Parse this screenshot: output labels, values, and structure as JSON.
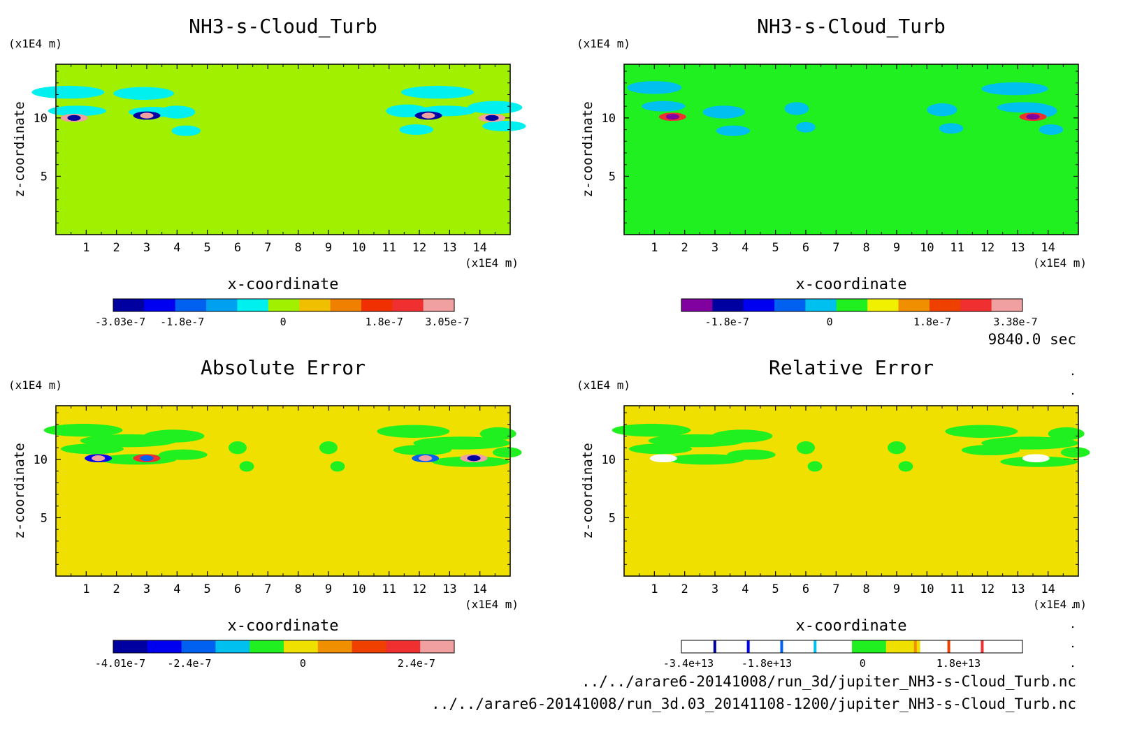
{
  "time_label": "9840.0 sec",
  "files": [
    "../../arare6-20141008/run_3d/jupiter_NH3-s-Cloud_Turb.nc",
    "../../arare6-20141008/run_3d.03_20141108-1200/jupiter_NH3-s-Cloud_Turb.nc"
  ],
  "chart_data": [
    {
      "type": "heatmap",
      "title": "NH3-s-Cloud_Turb",
      "xlabel": "x-coordinate",
      "ylabel": "z-coordinate",
      "x_unit": "(x1E4 m)",
      "y_unit": "(x1E4 m)",
      "xlim": [
        0,
        15
      ],
      "ylim": [
        0,
        14.6
      ],
      "xticks": [
        "1",
        "2",
        "3",
        "4",
        "5",
        "6",
        "7",
        "8",
        "9",
        "10",
        "11",
        "12",
        "13",
        "14"
      ],
      "yticks": [
        "5",
        "10"
      ],
      "background_color": "#a0f000",
      "colorbar": {
        "colors": [
          "#0000a0",
          "#0000f0",
          "#0060f0",
          "#00a0f0",
          "#00f0f0",
          "#a0f000",
          "#f0c000",
          "#f08000",
          "#f03000",
          "#f03030",
          "#f0a0a0"
        ],
        "labels": [
          "-3.03e-7",
          "-1.8e-7",
          "0",
          "1.8e-7",
          "3.05e-7"
        ],
        "min": -3.03e-07,
        "max": 3.05e-07
      },
      "features": [
        {
          "x": 0.6,
          "z": 10.0,
          "value": -3e-07
        },
        {
          "x": 3.0,
          "z": 10.2,
          "value": 3.05e-07
        },
        {
          "x": 12.3,
          "z": 10.2,
          "value": 2.8e-07
        },
        {
          "x": 14.4,
          "z": 10.0,
          "value": -3e-07
        }
      ]
    },
    {
      "type": "heatmap",
      "title": "NH3-s-Cloud_Turb",
      "xlabel": "x-coordinate",
      "ylabel": "z-coordinate",
      "x_unit": "(x1E4 m)",
      "y_unit": "(x1E4 m)",
      "xlim": [
        0,
        15
      ],
      "ylim": [
        0,
        14.6
      ],
      "xticks": [
        "1",
        "2",
        "3",
        "4",
        "5",
        "6",
        "7",
        "8",
        "9",
        "10",
        "11",
        "12",
        "13",
        "14"
      ],
      "yticks": [
        "5",
        "10"
      ],
      "background_color": "#20f020",
      "colorbar": {
        "colors": [
          "#8000a0",
          "#0000a0",
          "#0000f0",
          "#0060f0",
          "#00c0f0",
          "#20f020",
          "#f0f000",
          "#f09000",
          "#f04000",
          "#f03030",
          "#f0a0a0"
        ],
        "labels": [
          "-1.8e-7",
          "0",
          "1.8e-7",
          "3.38e-7"
        ],
        "min": -2.6e-07,
        "max": 3.38e-07
      },
      "features": [
        {
          "x": 1.6,
          "z": 10.1,
          "value": -2.6e-07
        },
        {
          "x": 13.5,
          "z": 10.1,
          "value": -2.4e-07
        }
      ]
    },
    {
      "type": "heatmap",
      "title": "Absolute Error",
      "xlabel": "x-coordinate",
      "ylabel": "z-coordinate",
      "x_unit": "(x1E4 m)",
      "y_unit": "(x1E4 m)",
      "xlim": [
        0,
        15
      ],
      "ylim": [
        0,
        14.6
      ],
      "xticks": [
        "1",
        "2",
        "3",
        "4",
        "5",
        "6",
        "7",
        "8",
        "9",
        "10",
        "11",
        "12",
        "13",
        "14"
      ],
      "yticks": [
        "5",
        "10"
      ],
      "background_color": "#f0e000",
      "colorbar": {
        "colors": [
          "#0000a0",
          "#0000f0",
          "#0060f0",
          "#00c0f0",
          "#20f020",
          "#f0e000",
          "#f09000",
          "#f04000",
          "#f03030",
          "#f0a0a0"
        ],
        "labels": [
          "-4.01e-7",
          "-2.4e-7",
          "0",
          "2.4e-7"
        ],
        "min": -4.01e-07,
        "max": 3.2e-07
      },
      "features": [
        {
          "x": 1.4,
          "z": 10.1,
          "value": 3e-07
        },
        {
          "x": 3.0,
          "z": 10.1,
          "value": -2e-07
        },
        {
          "x": 12.2,
          "z": 10.1,
          "value": 2.5e-07
        },
        {
          "x": 13.8,
          "z": 10.1,
          "value": -3.5e-07
        }
      ]
    },
    {
      "type": "heatmap",
      "title": "Relative Error",
      "xlabel": "x-coordinate",
      "ylabel": "z-coordinate",
      "x_unit": "(x1E4 m)",
      "y_unit": "(x1E4 m)",
      "xlim": [
        0,
        15
      ],
      "ylim": [
        0,
        14.6
      ],
      "xticks": [
        "1",
        "2",
        "3",
        "4",
        "5",
        "6",
        "7",
        "8",
        "9",
        "10",
        "11",
        "12",
        "13",
        "14"
      ],
      "yticks": [
        "5",
        "10"
      ],
      "background_color": "#f0e000",
      "colorbar": {
        "colors": [
          "#ffffff",
          "#ffffff",
          "#ffffff",
          "#ffffff",
          "#ffffff",
          "#20f020",
          "#f0e000",
          "#ffffff",
          "#ffffff",
          "#ffffff"
        ],
        "labels": [
          "-3.4e+13",
          "-1.8e+13",
          "0",
          "1.8e+13"
        ],
        "min": -34000000000000.0,
        "max": 30000000000000.0
      },
      "features": [
        {
          "x": 1.3,
          "z": 10.1,
          "value": -30000000000000.0
        },
        {
          "x": 13.6,
          "z": 10.1,
          "value": -25000000000000.0
        }
      ]
    }
  ]
}
